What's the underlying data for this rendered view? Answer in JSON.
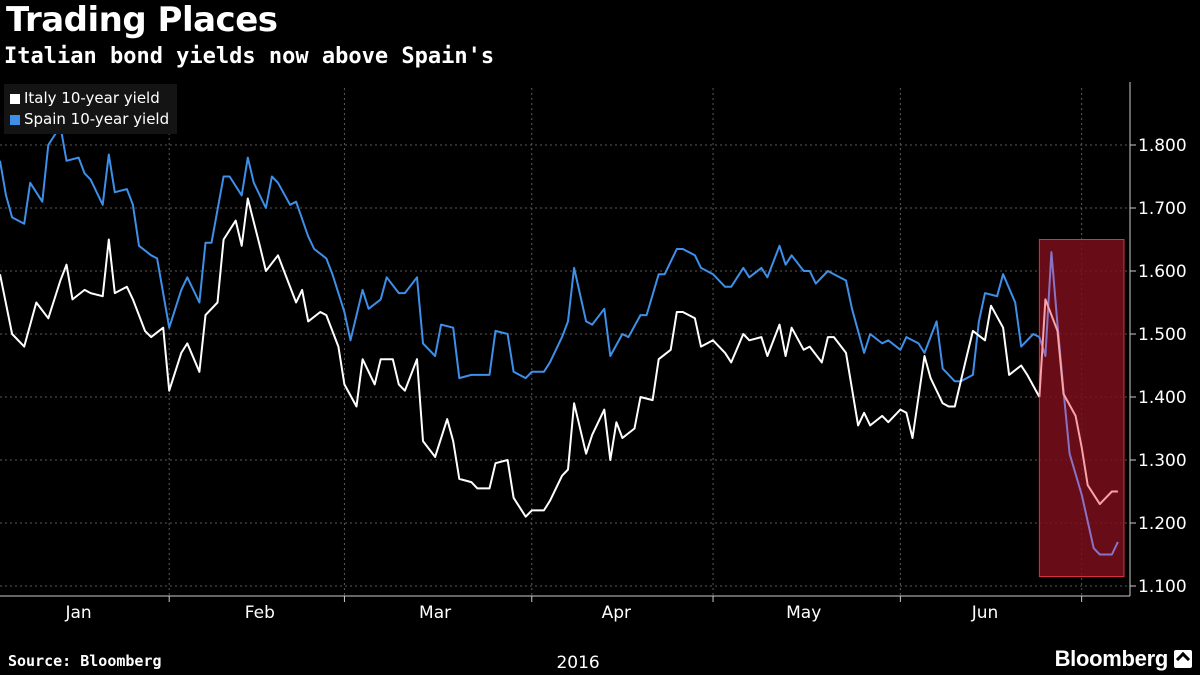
{
  "header": {
    "title": "Trading Places",
    "subtitle": "Italian bond yields now above Spain's"
  },
  "footer": {
    "source": "Source: Bloomberg",
    "brand": "Bloomberg"
  },
  "colors": {
    "italy": "#ffffff",
    "spain": "#3d8fe8",
    "highlight_fill": "#7a0f1c",
    "highlight_border": "#d9333f",
    "italy_highlight": "#f7a3a8",
    "spain_highlight": "#8a73c4",
    "grid": "#5a5a5a",
    "axis": "#cccccc"
  },
  "chart_data": {
    "type": "line",
    "title": "Trading Places",
    "subtitle": "Italian bond yields now above Spain's",
    "xlabel": "2016",
    "ylabel": "",
    "ylim": [
      1.1,
      1.9
    ],
    "yticks": [
      "1.100",
      "1.200",
      "1.300",
      "1.400",
      "1.500",
      "1.600",
      "1.700",
      "1.800"
    ],
    "ytick_values": [
      1.1,
      1.2,
      1.3,
      1.4,
      1.5,
      1.6,
      1.7,
      1.8
    ],
    "month_labels": [
      "Jan",
      "Feb",
      "Mar",
      "Apr",
      "May",
      "Jun"
    ],
    "month_label_days": [
      13,
      43,
      72,
      102,
      133,
      163
    ],
    "month_boundary_days": [
      28,
      57,
      88,
      118,
      149,
      179
    ],
    "x_range_days": [
      0,
      187
    ],
    "grid": true,
    "legend_position": "top-left",
    "highlight": {
      "start_day": 172,
      "end_day": 186,
      "ymin": 1.115,
      "ymax": 1.65
    },
    "series": [
      {
        "name": "Italy 10-year yield",
        "points": [
          [
            0,
            1.595
          ],
          [
            2,
            1.5
          ],
          [
            4,
            1.48
          ],
          [
            6,
            1.55
          ],
          [
            8,
            1.525
          ],
          [
            10,
            1.585
          ],
          [
            11,
            1.61
          ],
          [
            12,
            1.555
          ],
          [
            14,
            1.57
          ],
          [
            15,
            1.565
          ],
          [
            17,
            1.56
          ],
          [
            18,
            1.65
          ],
          [
            19,
            1.565
          ],
          [
            21,
            1.575
          ],
          [
            22,
            1.555
          ],
          [
            24,
            1.505
          ],
          [
            25,
            1.495
          ],
          [
            27,
            1.51
          ],
          [
            28,
            1.41
          ],
          [
            30,
            1.47
          ],
          [
            31,
            1.485
          ],
          [
            33,
            1.44
          ],
          [
            34,
            1.53
          ],
          [
            36,
            1.55
          ],
          [
            37,
            1.65
          ],
          [
            39,
            1.68
          ],
          [
            40,
            1.64
          ],
          [
            41,
            1.715
          ],
          [
            43,
            1.64
          ],
          [
            44,
            1.6
          ],
          [
            46,
            1.625
          ],
          [
            47,
            1.6
          ],
          [
            49,
            1.55
          ],
          [
            50,
            1.57
          ],
          [
            51,
            1.52
          ],
          [
            53,
            1.535
          ],
          [
            54,
            1.53
          ],
          [
            56,
            1.48
          ],
          [
            57,
            1.42
          ],
          [
            59,
            1.385
          ],
          [
            60,
            1.46
          ],
          [
            62,
            1.42
          ],
          [
            63,
            1.46
          ],
          [
            65,
            1.46
          ],
          [
            66,
            1.42
          ],
          [
            67,
            1.41
          ],
          [
            69,
            1.46
          ],
          [
            70,
            1.33
          ],
          [
            72,
            1.305
          ],
          [
            74,
            1.365
          ],
          [
            75,
            1.33
          ],
          [
            76,
            1.27
          ],
          [
            78,
            1.265
          ],
          [
            79,
            1.255
          ],
          [
            81,
            1.255
          ],
          [
            82,
            1.295
          ],
          [
            84,
            1.3
          ],
          [
            85,
            1.24
          ],
          [
            87,
            1.21
          ],
          [
            88,
            1.22
          ],
          [
            90,
            1.22
          ],
          [
            91,
            1.235
          ],
          [
            93,
            1.275
          ],
          [
            94,
            1.285
          ],
          [
            95,
            1.39
          ],
          [
            97,
            1.31
          ],
          [
            98,
            1.34
          ],
          [
            100,
            1.38
          ],
          [
            101,
            1.3
          ],
          [
            102,
            1.36
          ],
          [
            103,
            1.335
          ],
          [
            105,
            1.35
          ],
          [
            106,
            1.4
          ],
          [
            108,
            1.395
          ],
          [
            109,
            1.46
          ],
          [
            111,
            1.475
          ],
          [
            112,
            1.535
          ],
          [
            113,
            1.535
          ],
          [
            115,
            1.525
          ],
          [
            116,
            1.48
          ],
          [
            118,
            1.49
          ],
          [
            120,
            1.47
          ],
          [
            121,
            1.455
          ],
          [
            123,
            1.5
          ],
          [
            124,
            1.49
          ],
          [
            126,
            1.495
          ],
          [
            127,
            1.465
          ],
          [
            129,
            1.515
          ],
          [
            130,
            1.465
          ],
          [
            131,
            1.51
          ],
          [
            133,
            1.475
          ],
          [
            134,
            1.48
          ],
          [
            136,
            1.455
          ],
          [
            137,
            1.495
          ],
          [
            138,
            1.495
          ],
          [
            140,
            1.47
          ],
          [
            142,
            1.355
          ],
          [
            143,
            1.375
          ],
          [
            144,
            1.355
          ],
          [
            146,
            1.37
          ],
          [
            147,
            1.36
          ],
          [
            149,
            1.38
          ],
          [
            150,
            1.375
          ],
          [
            151,
            1.335
          ],
          [
            153,
            1.465
          ],
          [
            154,
            1.43
          ],
          [
            156,
            1.39
          ],
          [
            157,
            1.385
          ],
          [
            158,
            1.385
          ],
          [
            160,
            1.465
          ],
          [
            161,
            1.505
          ],
          [
            163,
            1.49
          ],
          [
            164,
            1.545
          ],
          [
            166,
            1.51
          ],
          [
            167,
            1.435
          ],
          [
            169,
            1.45
          ],
          [
            170,
            1.435
          ],
          [
            172,
            1.4
          ],
          [
            173,
            1.555
          ],
          [
            175,
            1.505
          ],
          [
            176,
            1.405
          ],
          [
            178,
            1.37
          ],
          [
            179,
            1.32
          ],
          [
            180,
            1.26
          ],
          [
            181,
            1.245
          ],
          [
            182,
            1.23
          ],
          [
            184,
            1.25
          ],
          [
            185,
            1.25
          ]
        ]
      },
      {
        "name": "Spain 10-year yield",
        "points": [
          [
            0,
            1.775
          ],
          [
            1,
            1.72
          ],
          [
            2,
            1.685
          ],
          [
            4,
            1.675
          ],
          [
            5,
            1.74
          ],
          [
            7,
            1.71
          ],
          [
            8,
            1.8
          ],
          [
            10,
            1.83
          ],
          [
            11,
            1.775
          ],
          [
            13,
            1.78
          ],
          [
            14,
            1.755
          ],
          [
            15,
            1.745
          ],
          [
            17,
            1.705
          ],
          [
            18,
            1.785
          ],
          [
            19,
            1.725
          ],
          [
            21,
            1.73
          ],
          [
            22,
            1.705
          ],
          [
            23,
            1.64
          ],
          [
            25,
            1.625
          ],
          [
            26,
            1.62
          ],
          [
            28,
            1.51
          ],
          [
            30,
            1.57
          ],
          [
            31,
            1.59
          ],
          [
            33,
            1.55
          ],
          [
            34,
            1.645
          ],
          [
            35,
            1.645
          ],
          [
            37,
            1.75
          ],
          [
            38,
            1.75
          ],
          [
            40,
            1.72
          ],
          [
            41,
            1.78
          ],
          [
            42,
            1.74
          ],
          [
            44,
            1.7
          ],
          [
            45,
            1.75
          ],
          [
            46,
            1.74
          ],
          [
            48,
            1.705
          ],
          [
            49,
            1.71
          ],
          [
            51,
            1.655
          ],
          [
            52,
            1.635
          ],
          [
            54,
            1.62
          ],
          [
            55,
            1.595
          ],
          [
            57,
            1.535
          ],
          [
            58,
            1.49
          ],
          [
            60,
            1.57
          ],
          [
            61,
            1.54
          ],
          [
            63,
            1.555
          ],
          [
            64,
            1.59
          ],
          [
            66,
            1.565
          ],
          [
            67,
            1.565
          ],
          [
            69,
            1.59
          ],
          [
            70,
            1.485
          ],
          [
            72,
            1.465
          ],
          [
            73,
            1.515
          ],
          [
            75,
            1.51
          ],
          [
            76,
            1.43
          ],
          [
            78,
            1.435
          ],
          [
            79,
            1.435
          ],
          [
            81,
            1.435
          ],
          [
            82,
            1.505
          ],
          [
            84,
            1.5
          ],
          [
            85,
            1.44
          ],
          [
            87,
            1.43
          ],
          [
            88,
            1.44
          ],
          [
            90,
            1.44
          ],
          [
            91,
            1.455
          ],
          [
            93,
            1.495
          ],
          [
            94,
            1.52
          ],
          [
            95,
            1.605
          ],
          [
            97,
            1.52
          ],
          [
            98,
            1.515
          ],
          [
            100,
            1.54
          ],
          [
            101,
            1.465
          ],
          [
            103,
            1.5
          ],
          [
            104,
            1.495
          ],
          [
            106,
            1.53
          ],
          [
            107,
            1.53
          ],
          [
            109,
            1.595
          ],
          [
            110,
            1.595
          ],
          [
            112,
            1.635
          ],
          [
            113,
            1.635
          ],
          [
            115,
            1.625
          ],
          [
            116,
            1.605
          ],
          [
            118,
            1.595
          ],
          [
            120,
            1.575
          ],
          [
            121,
            1.575
          ],
          [
            123,
            1.605
          ],
          [
            124,
            1.59
          ],
          [
            126,
            1.605
          ],
          [
            127,
            1.59
          ],
          [
            129,
            1.64
          ],
          [
            130,
            1.61
          ],
          [
            131,
            1.625
          ],
          [
            133,
            1.6
          ],
          [
            134,
            1.6
          ],
          [
            135,
            1.58
          ],
          [
            137,
            1.6
          ],
          [
            138,
            1.595
          ],
          [
            140,
            1.585
          ],
          [
            141,
            1.54
          ],
          [
            143,
            1.47
          ],
          [
            144,
            1.5
          ],
          [
            146,
            1.485
          ],
          [
            147,
            1.49
          ],
          [
            149,
            1.475
          ],
          [
            150,
            1.495
          ],
          [
            152,
            1.485
          ],
          [
            153,
            1.47
          ],
          [
            155,
            1.52
          ],
          [
            156,
            1.445
          ],
          [
            158,
            1.425
          ],
          [
            159,
            1.425
          ],
          [
            161,
            1.435
          ],
          [
            162,
            1.52
          ],
          [
            163,
            1.565
          ],
          [
            165,
            1.56
          ],
          [
            166,
            1.595
          ],
          [
            168,
            1.55
          ],
          [
            169,
            1.48
          ],
          [
            171,
            1.5
          ],
          [
            172,
            1.495
          ],
          [
            173,
            1.465
          ],
          [
            174,
            1.63
          ],
          [
            175,
            1.515
          ],
          [
            176,
            1.41
          ],
          [
            177,
            1.31
          ],
          [
            179,
            1.245
          ],
          [
            181,
            1.16
          ],
          [
            182,
            1.15
          ],
          [
            184,
            1.15
          ],
          [
            185,
            1.17
          ]
        ]
      }
    ]
  }
}
